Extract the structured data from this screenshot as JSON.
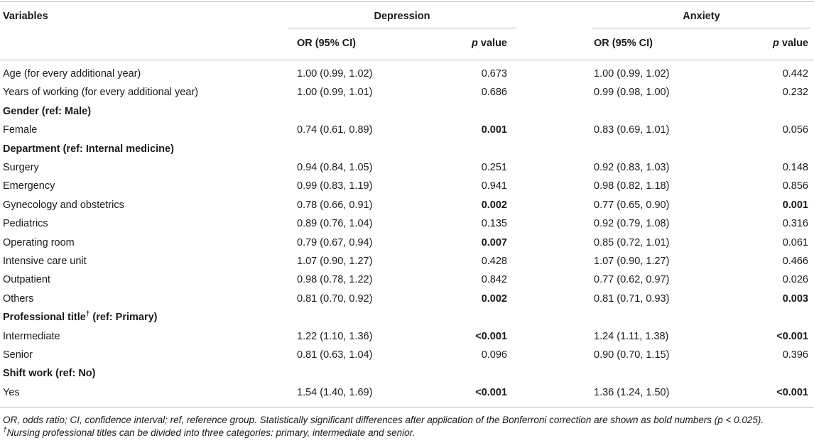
{
  "header": {
    "variables": "Variables",
    "depression": "Depression",
    "anxiety": "Anxiety",
    "or_ci": "OR (95% CI)",
    "p_italic": "p",
    "p_rest": " value"
  },
  "rows": [
    {
      "type": "data",
      "label": "Age (for every additional year)",
      "dep_or": "1.00 (0.99, 1.02)",
      "dep_p": "0.673",
      "dep_bold": false,
      "anx_or": "1.00 (0.99, 1.02)",
      "anx_p": "0.442",
      "anx_bold": false
    },
    {
      "type": "data",
      "label": "Years of working (for every additional year)",
      "dep_or": "1.00 (0.99, 1.01)",
      "dep_p": "0.686",
      "dep_bold": false,
      "anx_or": "0.99 (0.98, 1.00)",
      "anx_p": "0.232",
      "anx_bold": false
    },
    {
      "type": "group",
      "label": "Gender (ref: Male)"
    },
    {
      "type": "data",
      "label": "Female",
      "dep_or": "0.74 (0.61, 0.89)",
      "dep_p": "0.001",
      "dep_bold": true,
      "anx_or": "0.83 (0.69, 1.01)",
      "anx_p": "0.056",
      "anx_bold": false
    },
    {
      "type": "group",
      "label": "Department (ref: Internal medicine)"
    },
    {
      "type": "data",
      "label": "Surgery",
      "dep_or": "0.94 (0.84, 1.05)",
      "dep_p": "0.251",
      "dep_bold": false,
      "anx_or": "0.92 (0.83, 1.03)",
      "anx_p": "0.148",
      "anx_bold": false
    },
    {
      "type": "data",
      "label": "Emergency",
      "dep_or": "0.99 (0.83, 1.19)",
      "dep_p": "0.941",
      "dep_bold": false,
      "anx_or": "0.98 (0.82, 1.18)",
      "anx_p": "0.856",
      "anx_bold": false
    },
    {
      "type": "data",
      "label": "Gynecology and obstetrics",
      "dep_or": "0.78 (0.66, 0.91)",
      "dep_p": "0.002",
      "dep_bold": true,
      "anx_or": "0.77 (0.65, 0.90)",
      "anx_p": "0.001",
      "anx_bold": true
    },
    {
      "type": "data",
      "label": "Pediatrics",
      "dep_or": "0.89 (0.76, 1.04)",
      "dep_p": "0.135",
      "dep_bold": false,
      "anx_or": "0.92 (0.79, 1.08)",
      "anx_p": "0.316",
      "anx_bold": false
    },
    {
      "type": "data",
      "label": "Operating room",
      "dep_or": "0.79 (0.67, 0.94)",
      "dep_p": "0.007",
      "dep_bold": true,
      "anx_or": "0.85 (0.72, 1.01)",
      "anx_p": "0.061",
      "anx_bold": false
    },
    {
      "type": "data",
      "label": "Intensive care unit",
      "dep_or": "1.07 (0.90, 1.27)",
      "dep_p": "0.428",
      "dep_bold": false,
      "anx_or": "1.07 (0.90, 1.27)",
      "anx_p": "0.466",
      "anx_bold": false
    },
    {
      "type": "data",
      "label": "Outpatient",
      "dep_or": "0.98 (0.78, 1.22)",
      "dep_p": "0.842",
      "dep_bold": false,
      "anx_or": "0.77 (0.62, 0.97)",
      "anx_p": "0.026",
      "anx_bold": false
    },
    {
      "type": "data",
      "label": "Others",
      "dep_or": "0.81 (0.70, 0.92)",
      "dep_p": "0.002",
      "dep_bold": true,
      "anx_or": "0.81 (0.71, 0.93)",
      "anx_p": "0.003",
      "anx_bold": true
    },
    {
      "type": "group",
      "label": "Professional title",
      "sup": "†",
      "label_rest": " (ref: Primary)"
    },
    {
      "type": "data",
      "label": "Intermediate",
      "dep_or": "1.22 (1.10, 1.36)",
      "dep_p": "<0.001",
      "dep_bold": true,
      "anx_or": "1.24 (1.11, 1.38)",
      "anx_p": "<0.001",
      "anx_bold": true
    },
    {
      "type": "data",
      "label": "Senior",
      "dep_or": "0.81 (0.63, 1.04)",
      "dep_p": "0.096",
      "dep_bold": false,
      "anx_or": "0.90 (0.70, 1.15)",
      "anx_p": "0.396",
      "anx_bold": false
    },
    {
      "type": "group",
      "label": "Shift work (ref: No)"
    },
    {
      "type": "data",
      "label": "Yes",
      "dep_or": "1.54 (1.40, 1.69)",
      "dep_p": "<0.001",
      "dep_bold": true,
      "anx_or": "1.36 (1.24, 1.50)",
      "anx_p": "<0.001",
      "anx_bold": true
    }
  ],
  "footnotes": {
    "line1": "OR, odds ratio; CI, confidence interval; ref, reference group. Statistically significant differences after application of the Bonferroni correction are shown as bold numbers (p < 0.025).",
    "line2_mark": "†",
    "line2": "Nursing professional titles can be divided into three categories: primary, intermediate and senior."
  }
}
